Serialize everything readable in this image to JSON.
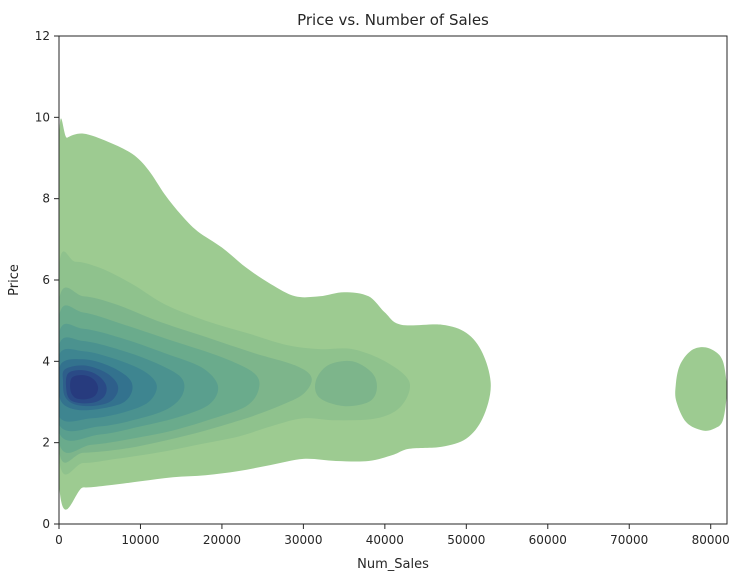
{
  "chart_data": {
    "type": "kde-contour",
    "title": "Price vs. Number of Sales",
    "xlabel": "Num_Sales",
    "ylabel": "Price",
    "xlim": [
      0,
      82000
    ],
    "ylim": [
      0,
      12
    ],
    "xticks": [
      0,
      10000,
      20000,
      30000,
      40000,
      50000,
      60000,
      70000,
      80000
    ],
    "yticks": [
      0,
      2,
      4,
      6,
      8,
      10,
      12
    ],
    "grid": false,
    "colormap": [
      "#9dcb91",
      "#8fc28d",
      "#7db58b",
      "#6aab8c",
      "#5a9f8e",
      "#4b928f",
      "#3e8590",
      "#33728e",
      "#2e5f8b",
      "#2a4a86",
      "#273b7e"
    ],
    "levels": [
      {
        "level": 1,
        "color": "#9dcb91",
        "regions": [
          [
            [
              0,
              9.3
            ],
            [
              1000,
              9.5
            ],
            [
              3000,
              9.6
            ],
            [
              6000,
              9.4
            ],
            [
              9000,
              9.1
            ],
            [
              11000,
              8.7
            ],
            [
              13000,
              8.1
            ],
            [
              15000,
              7.6
            ],
            [
              17000,
              7.2
            ],
            [
              20000,
              6.8
            ],
            [
              23000,
              6.3
            ],
            [
              26000,
              5.9
            ],
            [
              29000,
              5.6
            ],
            [
              32000,
              5.6
            ],
            [
              35000,
              5.7
            ],
            [
              38000,
              5.6
            ],
            [
              40000,
              5.2
            ],
            [
              42000,
              4.9
            ],
            [
              47000,
              4.9
            ],
            [
              50000,
              4.7
            ],
            [
              52000,
              4.2
            ],
            [
              53000,
              3.4
            ],
            [
              52000,
              2.6
            ],
            [
              50000,
              2.1
            ],
            [
              47000,
              1.9
            ],
            [
              43000,
              1.85
            ],
            [
              41000,
              1.7
            ],
            [
              38000,
              1.55
            ],
            [
              34000,
              1.55
            ],
            [
              30000,
              1.6
            ],
            [
              26000,
              1.45
            ],
            [
              22000,
              1.3
            ],
            [
              18000,
              1.2
            ],
            [
              14000,
              1.15
            ],
            [
              10000,
              1.05
            ],
            [
              6000,
              0.95
            ],
            [
              3000,
              0.9
            ],
            [
              0,
              1.0
            ]
          ],
          [
            [
              79000,
              4.35
            ],
            [
              80500,
              4.25
            ],
            [
              81500,
              4.0
            ],
            [
              82000,
              3.4
            ],
            [
              82000,
              3.2
            ],
            [
              81500,
              2.55
            ],
            [
              80500,
              2.35
            ],
            [
              79000,
              2.3
            ],
            [
              77000,
              2.5
            ],
            [
              75800,
              3.0
            ],
            [
              75700,
              3.4
            ],
            [
              76200,
              3.9
            ],
            [
              77500,
              4.25
            ]
          ]
        ]
      },
      {
        "level": 2,
        "color": "#8fc28d",
        "regions": [
          [
            [
              0,
              6.3
            ],
            [
              2000,
              6.45
            ],
            [
              5000,
              6.3
            ],
            [
              9000,
              5.9
            ],
            [
              13000,
              5.4
            ],
            [
              18000,
              5.0
            ],
            [
              23000,
              4.7
            ],
            [
              28000,
              4.4
            ],
            [
              32000,
              4.3
            ],
            [
              36000,
              4.3
            ],
            [
              40000,
              4.0
            ],
            [
              43000,
              3.5
            ],
            [
              42000,
              2.9
            ],
            [
              39000,
              2.6
            ],
            [
              34000,
              2.55
            ],
            [
              30000,
              2.6
            ],
            [
              26000,
              2.4
            ],
            [
              22000,
              2.15
            ],
            [
              17000,
              1.95
            ],
            [
              12000,
              1.75
            ],
            [
              7000,
              1.6
            ],
            [
              3000,
              1.5
            ],
            [
              0,
              1.6
            ]
          ]
        ]
      },
      {
        "level": 3,
        "color": "#7db58b",
        "regions": [
          [
            [
              0,
              5.5
            ],
            [
              3000,
              5.6
            ],
            [
              7000,
              5.4
            ],
            [
              12000,
              5.0
            ],
            [
              18000,
              4.6
            ],
            [
              24000,
              4.2
            ],
            [
              29000,
              3.9
            ],
            [
              31000,
              3.6
            ],
            [
              30000,
              3.2
            ],
            [
              27000,
              2.9
            ],
            [
              23000,
              2.6
            ],
            [
              18000,
              2.3
            ],
            [
              13000,
              2.05
            ],
            [
              8000,
              1.85
            ],
            [
              3000,
              1.75
            ],
            [
              0,
              1.8
            ]
          ],
          [
            [
              33000,
              3.9
            ],
            [
              36000,
              4.0
            ],
            [
              38500,
              3.7
            ],
            [
              39000,
              3.3
            ],
            [
              38000,
              3.0
            ],
            [
              35000,
              2.9
            ],
            [
              32000,
              3.1
            ],
            [
              31500,
              3.5
            ]
          ]
        ]
      },
      {
        "level": 4,
        "color": "#6aab8c",
        "regions": [
          [
            [
              0,
              5.1
            ],
            [
              3000,
              5.2
            ],
            [
              8000,
              4.9
            ],
            [
              14000,
              4.5
            ],
            [
              20000,
              4.1
            ],
            [
              24000,
              3.7
            ],
            [
              24500,
              3.3
            ],
            [
              23000,
              2.9
            ],
            [
              19000,
              2.6
            ],
            [
              14000,
              2.3
            ],
            [
              9000,
              2.1
            ],
            [
              4000,
              1.95
            ],
            [
              0,
              2.0
            ]
          ]
        ]
      },
      {
        "level": 5,
        "color": "#5a9f8e",
        "regions": [
          [
            [
              0,
              4.7
            ],
            [
              3000,
              4.8
            ],
            [
              8000,
              4.55
            ],
            [
              13000,
              4.2
            ],
            [
              17500,
              3.85
            ],
            [
              19500,
              3.4
            ],
            [
              18500,
              2.95
            ],
            [
              15000,
              2.65
            ],
            [
              10000,
              2.4
            ],
            [
              5000,
              2.2
            ],
            [
              0,
              2.25
            ]
          ]
        ]
      },
      {
        "level": 6,
        "color": "#4b928f",
        "regions": [
          [
            [
              0,
              4.4
            ],
            [
              3000,
              4.5
            ],
            [
              8000,
              4.25
            ],
            [
              12000,
              3.95
            ],
            [
              15000,
              3.6
            ],
            [
              15200,
              3.2
            ],
            [
              13500,
              2.85
            ],
            [
              10000,
              2.6
            ],
            [
              5000,
              2.4
            ],
            [
              0,
              2.45
            ]
          ]
        ]
      },
      {
        "level": 7,
        "color": "#3e8590",
        "regions": [
          [
            [
              0,
              4.15
            ],
            [
              3000,
              4.25
            ],
            [
              7000,
              4.05
            ],
            [
              10500,
              3.75
            ],
            [
              12000,
              3.4
            ],
            [
              11000,
              3.0
            ],
            [
              8000,
              2.75
            ],
            [
              4000,
              2.6
            ],
            [
              0,
              2.65
            ]
          ]
        ]
      },
      {
        "level": 8,
        "color": "#33728e",
        "regions": [
          [
            [
              300,
              3.95
            ],
            [
              3000,
              4.05
            ],
            [
              6000,
              3.9
            ],
            [
              8500,
              3.6
            ],
            [
              9000,
              3.3
            ],
            [
              8000,
              3.0
            ],
            [
              5500,
              2.85
            ],
            [
              2500,
              2.8
            ],
            [
              500,
              2.95
            ],
            [
              0,
              3.3
            ]
          ]
        ]
      },
      {
        "level": 9,
        "color": "#2e5f8b",
        "regions": [
          [
            [
              700,
              3.8
            ],
            [
              3000,
              3.9
            ],
            [
              5500,
              3.75
            ],
            [
              7000,
              3.5
            ],
            [
              7200,
              3.25
            ],
            [
              6200,
              3.0
            ],
            [
              4000,
              2.9
            ],
            [
              1800,
              2.95
            ],
            [
              700,
              3.15
            ],
            [
              500,
              3.5
            ]
          ]
        ]
      },
      {
        "level": 10,
        "color": "#2a4a86",
        "regions": [
          [
            [
              1100,
              3.7
            ],
            [
              3000,
              3.78
            ],
            [
              4800,
              3.65
            ],
            [
              5800,
              3.4
            ],
            [
              5600,
              3.15
            ],
            [
              4500,
              3.0
            ],
            [
              2800,
              2.97
            ],
            [
              1400,
              3.05
            ],
            [
              900,
              3.3
            ]
          ]
        ]
      },
      {
        "level": 11,
        "color": "#273b7e",
        "regions": [
          [
            [
              1600,
              3.6
            ],
            [
              3100,
              3.66
            ],
            [
              4300,
              3.55
            ],
            [
              4800,
              3.35
            ],
            [
              4400,
              3.15
            ],
            [
              3300,
              3.07
            ],
            [
              2000,
              3.1
            ],
            [
              1400,
              3.3
            ]
          ]
        ]
      }
    ]
  }
}
